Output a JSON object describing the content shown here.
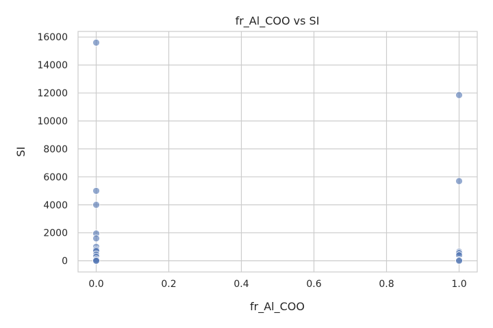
{
  "chart_data": {
    "type": "scatter",
    "title": "fr_Al_COO vs SI",
    "xlabel": "fr_Al_COO",
    "ylabel": "SI",
    "xlim": [
      -0.05,
      1.05
    ],
    "ylim": [
      -800,
      16400
    ],
    "xticks": [
      0.0,
      0.2,
      0.4,
      0.6,
      0.8,
      1.0
    ],
    "xtick_labels": [
      "0.0",
      "0.2",
      "0.4",
      "0.6",
      "0.8",
      "1.0"
    ],
    "yticks": [
      0,
      2000,
      4000,
      6000,
      8000,
      10000,
      12000,
      14000,
      16000
    ],
    "ytick_labels": [
      "0",
      "2000",
      "4000",
      "6000",
      "8000",
      "10000",
      "12000",
      "14000",
      "16000"
    ],
    "grid": true,
    "point_color": "#4c72b0",
    "points": [
      {
        "x": 0,
        "y": 15600
      },
      {
        "x": 0,
        "y": 5000
      },
      {
        "x": 0,
        "y": 4000
      },
      {
        "x": 0,
        "y": 1950
      },
      {
        "x": 0,
        "y": 1600
      },
      {
        "x": 0,
        "y": 1000
      },
      {
        "x": 0,
        "y": 800
      },
      {
        "x": 0,
        "y": 700
      },
      {
        "x": 0,
        "y": 450
      },
      {
        "x": 0,
        "y": 300
      },
      {
        "x": 0,
        "y": 100
      },
      {
        "x": 0,
        "y": 20
      },
      {
        "x": 0,
        "y": 0
      },
      {
        "x": 1,
        "y": 11850
      },
      {
        "x": 1,
        "y": 5700
      },
      {
        "x": 1,
        "y": 650
      },
      {
        "x": 1,
        "y": 550
      },
      {
        "x": 1,
        "y": 400
      },
      {
        "x": 1,
        "y": 50
      },
      {
        "x": 1,
        "y": 0
      }
    ]
  }
}
